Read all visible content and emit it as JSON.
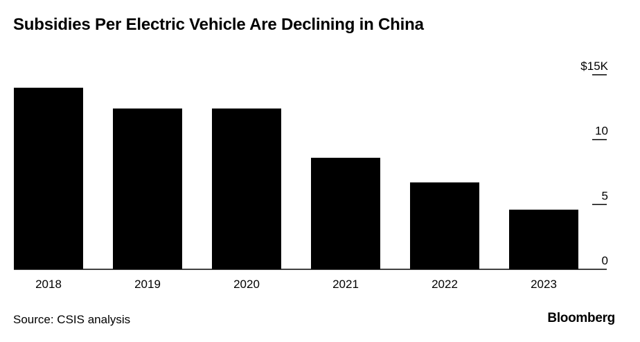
{
  "title": "Subsidies Per Electric Vehicle Are Declining in China",
  "source": "Source: CSIS analysis",
  "brand": "Bloomberg",
  "colors": {
    "bar": "#000000",
    "background": "#ffffff",
    "text": "#000000"
  },
  "chart_data": {
    "type": "bar",
    "title": "Subsidies Per Electric Vehicle Are Declining in China",
    "categories": [
      "2018",
      "2019",
      "2020",
      "2021",
      "2022",
      "2023"
    ],
    "values": [
      14.0,
      12.4,
      12.4,
      8.6,
      6.7,
      4.6
    ],
    "ylim": [
      0,
      15
    ],
    "yticks": [
      {
        "value": 0,
        "label": "0"
      },
      {
        "value": 5,
        "label": "5"
      },
      {
        "value": 10,
        "label": "10"
      },
      {
        "value": 15,
        "label": "$15K"
      }
    ],
    "xlabel": "",
    "ylabel": "",
    "grid": false,
    "y_axis_side": "right"
  }
}
